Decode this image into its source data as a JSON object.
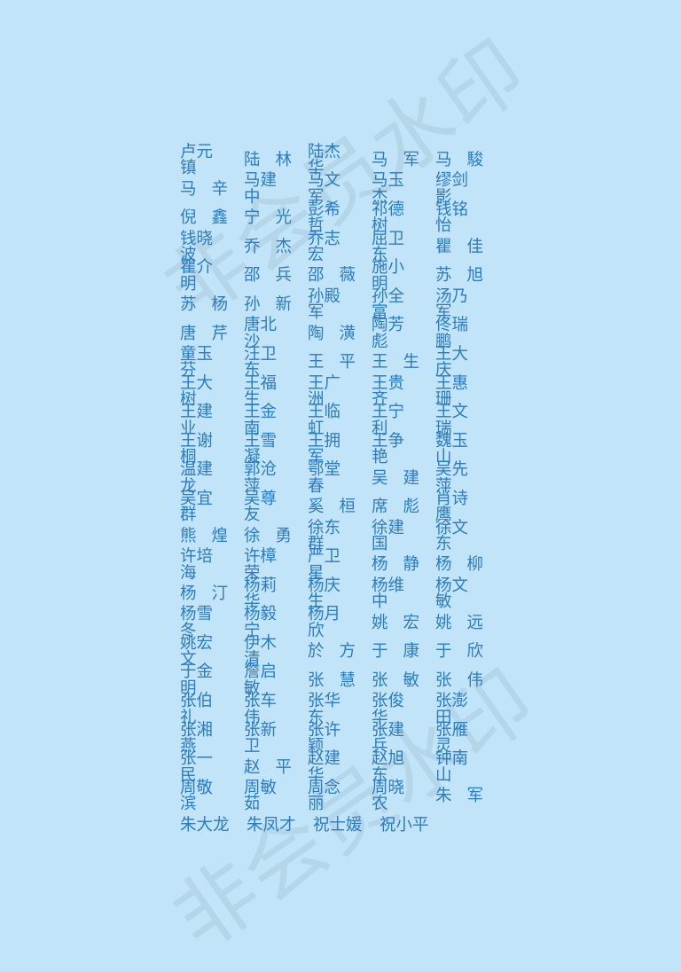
{
  "watermark": "非会员水印",
  "names": [
    [
      "卢元镇",
      "陆林",
      "陆杰华",
      "马军",
      "马駿"
    ],
    [
      "马辛",
      "马建中",
      "马文军",
      "马玉杰",
      "缪剑影"
    ],
    [
      "倪鑫",
      "宁光",
      "彭希哲",
      "祁德树",
      "钱铭怡"
    ],
    [
      "钱晓波",
      "乔杰",
      "乔志宏",
      "屈卫东",
      "瞿佳"
    ],
    [
      "瞿介明",
      "邵兵",
      "邵薇",
      "施小明",
      "苏旭"
    ],
    [
      "苏杨",
      "孙新",
      "孙殿军",
      "孙全富",
      "汤乃军"
    ],
    [
      "唐芹",
      "唐北沙",
      "陶潢",
      "陶芳彪",
      "佟瑞鹏"
    ],
    [
      "童玉芬",
      "汪卫东",
      "王平",
      "王生",
      "王大庆"
    ],
    [
      "王大树",
      "王福生",
      "王广洲",
      "王贵齐",
      "王惠珊"
    ],
    [
      "王建业",
      "王金南",
      "王临虹",
      "王宁利",
      "王文瑞"
    ],
    [
      "王谢桐",
      "王雪凝",
      "王拥军",
      "王争艳",
      "魏玉山"
    ],
    [
      "温建龙",
      "郭沧萍",
      "鄂堂春",
      "吴建",
      "吴先萍"
    ],
    [
      "吴宜群",
      "吴尊友",
      "奚桓",
      "席彪",
      "肖诗鹰"
    ],
    [
      "熊煌",
      "徐勇",
      "徐东群",
      "徐建国",
      "徐文东"
    ],
    [
      "许培海",
      "许樟荣",
      "严卫星",
      "杨静",
      "杨柳"
    ],
    [
      "杨汀",
      "杨莉华",
      "杨庆生",
      "杨维中",
      "杨文敏"
    ],
    [
      "杨雪冬",
      "杨毅宁",
      "杨月欣",
      "姚宏",
      "姚远"
    ],
    [
      "姚宏文",
      "伊木清",
      "於方",
      "于康",
      "于欣"
    ],
    [
      "于金明",
      "詹启敏",
      "张慧",
      "张敏",
      "张伟"
    ],
    [
      "张伯礼",
      "张车伟",
      "张华东",
      "张俊华",
      "张澎田"
    ],
    [
      "张湘燕",
      "张新卫",
      "张许颖",
      "张建兵",
      "张雁灵"
    ],
    [
      "张一民",
      "赵平",
      "赵建华",
      "赵旭东",
      "钟南山"
    ],
    [
      "周敬滨",
      "周敏茹",
      "周念丽",
      "周晓农",
      "朱军"
    ],
    [
      "朱大龙",
      "朱凤才",
      "祝士媛",
      "祝小平"
    ]
  ]
}
